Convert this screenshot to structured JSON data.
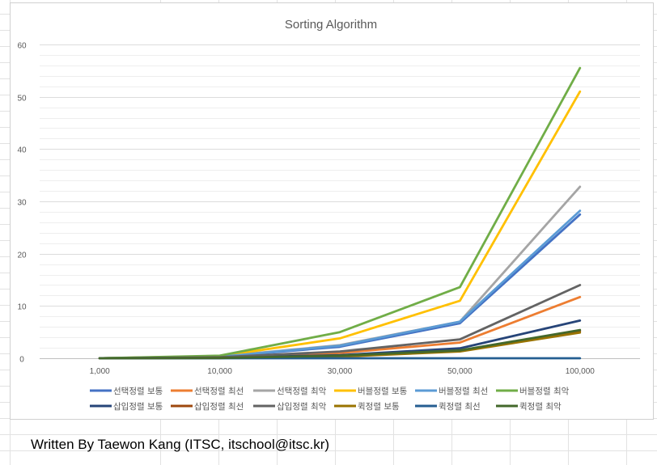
{
  "footer_text": "Written By Taewon Kang (ITSC, itschool@itsc.kr)",
  "colors": {
    "gridline": "#dcdcdc",
    "sheet_grid": "#e2e2e2",
    "axis": "#bfbfbf",
    "tick_text": "#595959",
    "title_text": "#595959"
  },
  "chart_data": {
    "type": "line",
    "title": "Sorting Algorithm",
    "xlabel": "",
    "ylabel": "",
    "categories": [
      "1,000",
      "10,000",
      "30,000",
      "50,000",
      "100,000"
    ],
    "ylim": [
      0,
      60
    ],
    "yticks": [
      0,
      10,
      20,
      30,
      40,
      50,
      60
    ],
    "grid": true,
    "legend_position": "bottom",
    "series": [
      {
        "name": "선택정렬 보통",
        "color": "#4472c4",
        "values": [
          0,
          0.3,
          2.2,
          6.7,
          27.5
        ]
      },
      {
        "name": "선택정렬 최선",
        "color": "#ed7d31",
        "values": [
          0,
          0.1,
          1.0,
          3.0,
          11.7
        ]
      },
      {
        "name": "선택정렬 최악",
        "color": "#a5a5a5",
        "values": [
          0,
          0.35,
          2.5,
          7.0,
          32.8
        ]
      },
      {
        "name": "버블정렬 보통",
        "color": "#ffc000",
        "values": [
          0,
          0.4,
          3.8,
          11.0,
          51.0
        ]
      },
      {
        "name": "버블정렬 최선",
        "color": "#5b9bd5",
        "values": [
          0,
          0.3,
          2.4,
          7.0,
          28.2
        ]
      },
      {
        "name": "버블정렬 최악",
        "color": "#70ad47",
        "values": [
          0,
          0.5,
          5.0,
          13.6,
          55.5
        ]
      },
      {
        "name": "삽입정렬 보통",
        "color": "#264478",
        "values": [
          0,
          0.1,
          0.6,
          1.9,
          7.2
        ]
      },
      {
        "name": "삽입정렬 최선",
        "color": "#9e480e",
        "values": [
          0,
          0.05,
          0.4,
          1.4,
          5.2
        ]
      },
      {
        "name": "삽입정렬 최악",
        "color": "#636363",
        "values": [
          0,
          0.2,
          1.3,
          3.6,
          14.0
        ]
      },
      {
        "name": "퀵정렬 보통",
        "color": "#997300",
        "values": [
          0,
          0.05,
          0.3,
          1.3,
          4.9
        ]
      },
      {
        "name": "퀵정렬 최선",
        "color": "#255e91",
        "values": [
          0,
          0,
          0,
          0,
          0
        ]
      },
      {
        "name": "퀵정렬 최악",
        "color": "#43682b",
        "values": [
          0,
          0.05,
          0.5,
          1.5,
          5.4
        ]
      }
    ]
  }
}
